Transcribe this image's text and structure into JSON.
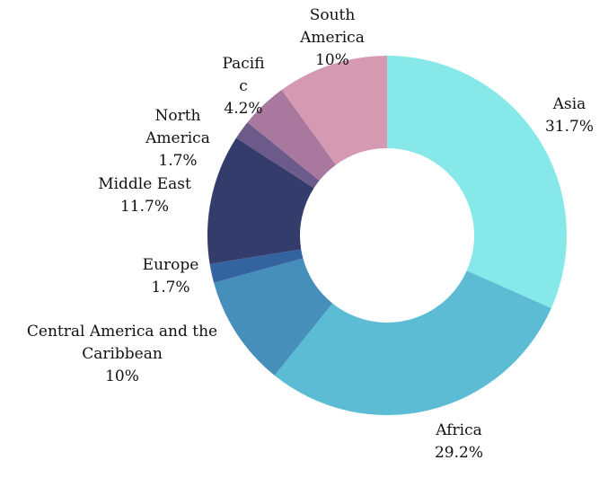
{
  "chart_data": {
    "type": "pie",
    "donut": true,
    "title": "",
    "categories": [
      "Asia",
      "Africa",
      "Central America and the Caribbean",
      "Europe",
      "Middle East",
      "North America",
      "Pacific",
      "South America"
    ],
    "values": [
      31.7,
      29.2,
      10,
      1.7,
      11.7,
      1.7,
      4.2,
      10
    ],
    "value_labels": [
      "31.7%",
      "29.2%",
      "10%",
      "1.7%",
      "11.7%",
      "1.7%",
      "4.2%",
      "10%"
    ],
    "colors": [
      "#86E8E8",
      "#5BBCD4",
      "#468FBA",
      "#3464A0",
      "#343C6C",
      "#6B5A8A",
      "#A8789E",
      "#D59AB2"
    ],
    "label_lines": [
      [
        "Asia",
        "31.7%"
      ],
      [
        "Africa",
        "29.2%"
      ],
      [
        "Central America and the",
        "Caribbean",
        "10%"
      ],
      [
        "Europe",
        "1.7%"
      ],
      [
        "Middle East",
        "11.7%"
      ],
      [
        "North",
        "America",
        "1.7%"
      ],
      [
        "Pacifi",
        "c",
        "4.2%"
      ],
      [
        "South",
        "America",
        "10%"
      ]
    ],
    "start_angle_deg": 0,
    "direction": "clockwise",
    "legend": "none"
  }
}
